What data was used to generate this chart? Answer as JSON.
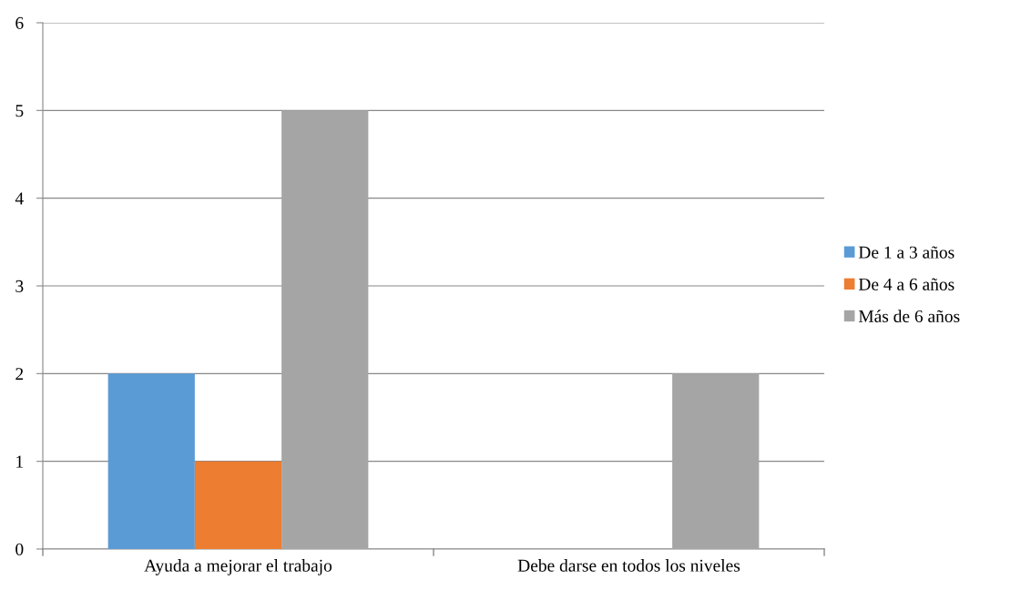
{
  "chart_data": {
    "type": "bar",
    "categories": [
      "Ayuda a mejorar el trabajo",
      "Debe darse en todos los niveles"
    ],
    "series": [
      {
        "name": "De 1 a 3 años",
        "color": "#5b9bd5",
        "values": [
          2,
          0
        ]
      },
      {
        "name": "De 4 a 6 años",
        "color": "#ed7d31",
        "values": [
          1,
          0
        ]
      },
      {
        "name": "Más de 6 años",
        "color": "#a5a5a5",
        "values": [
          5,
          2
        ]
      }
    ],
    "ylim": [
      0,
      6
    ],
    "yticks": [
      0,
      1,
      2,
      3,
      4,
      5,
      6
    ],
    "grid": "y",
    "legend": "right"
  }
}
